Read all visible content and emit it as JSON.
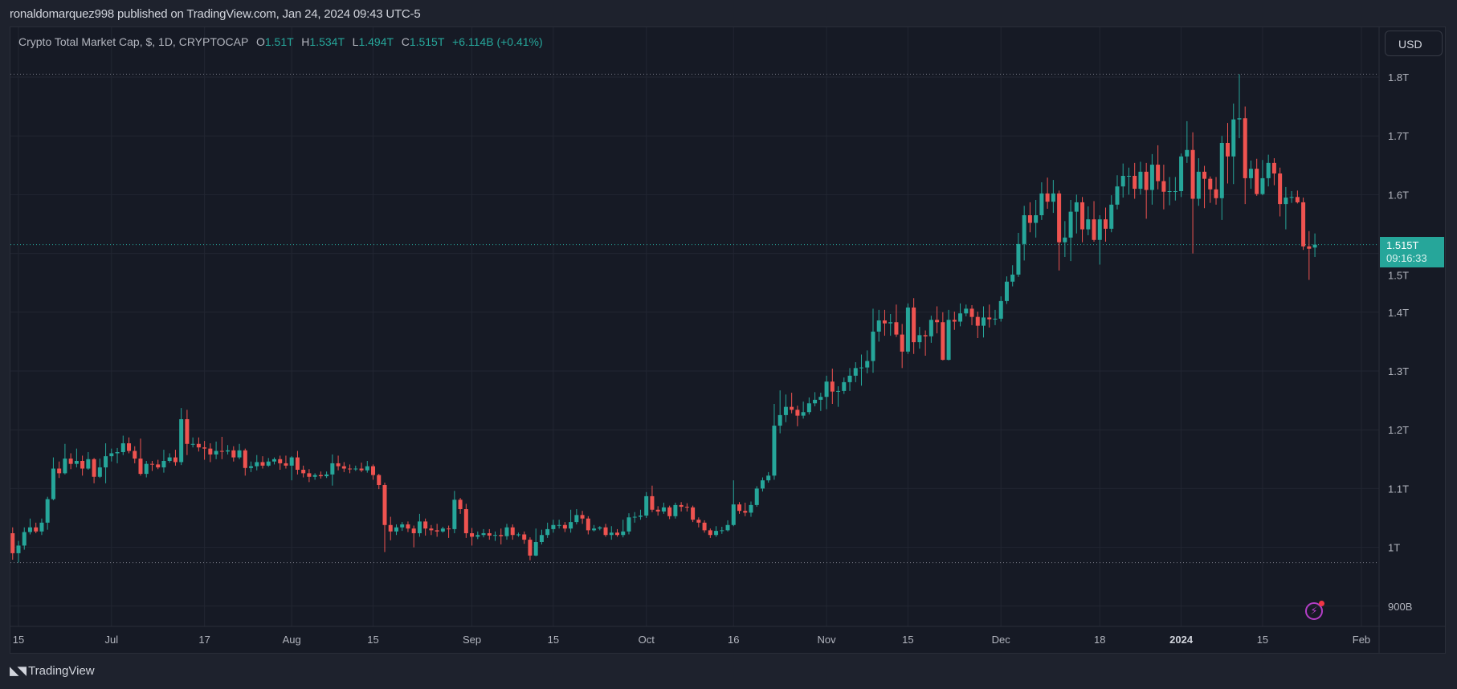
{
  "header": {
    "publish_line": "ronaldomarquez998 published on TradingView.com, Jan 24, 2024 09:43 UTC-5"
  },
  "legend": {
    "symbol": "Crypto Total Market Cap, $, 1D, CRYPTOCAP",
    "o_label": "O",
    "o_value": "1.51T",
    "h_label": "H",
    "h_value": "1.534T",
    "l_label": "L",
    "l_value": "1.494T",
    "c_label": "C",
    "c_value": "1.515T",
    "change": "+6.114B (+0.41%)"
  },
  "price_axis": {
    "currency_button": "USD",
    "last_price": "1.515T",
    "countdown": "09:16:33"
  },
  "footer": {
    "brand": "TradingView",
    "logo_mark": "TV"
  },
  "colors": {
    "up": "#26a69a",
    "down": "#ef5350",
    "background": "#161a25",
    "grid": "#222632"
  },
  "chart_data": {
    "type": "candlestick",
    "title": "Crypto Total Market Cap, $, 1D, CRYPTOCAP",
    "start_date": "2023-06-14",
    "interval": "1D",
    "units": "T (trillion USD)",
    "ylim": [
      0.86,
      1.84
    ],
    "y_ticks": [
      {
        "v": 1.8,
        "label": "1.8T"
      },
      {
        "v": 1.7,
        "label": "1.7T"
      },
      {
        "v": 1.6,
        "label": "1.6T"
      },
      {
        "v": 1.5,
        "label": "1.5T"
      },
      {
        "v": 1.4,
        "label": "1.4T"
      },
      {
        "v": 1.3,
        "label": "1.3T"
      },
      {
        "v": 1.2,
        "label": "1.2T"
      },
      {
        "v": 1.1,
        "label": "1.1T"
      },
      {
        "v": 1.0,
        "label": "1T"
      },
      {
        "v": 0.9,
        "label": "900B"
      }
    ],
    "x_ticks": [
      {
        "date": "2023-06-15",
        "label": "15"
      },
      {
        "date": "2023-07-01",
        "label": "Jul"
      },
      {
        "date": "2023-07-17",
        "label": "17"
      },
      {
        "date": "2023-08-01",
        "label": "Aug"
      },
      {
        "date": "2023-08-15",
        "label": "15"
      },
      {
        "date": "2023-09-01",
        "label": "Sep"
      },
      {
        "date": "2023-09-15",
        "label": "15"
      },
      {
        "date": "2023-10-01",
        "label": "Oct"
      },
      {
        "date": "2023-10-16",
        "label": "16"
      },
      {
        "date": "2023-11-01",
        "label": "Nov"
      },
      {
        "date": "2023-11-15",
        "label": "15"
      },
      {
        "date": "2023-12-01",
        "label": "Dec"
      },
      {
        "date": "2023-12-18",
        "label": "18"
      },
      {
        "date": "2024-01-01",
        "label": "2024",
        "bold": true
      },
      {
        "date": "2024-01-15",
        "label": "15"
      },
      {
        "date": "2024-02-01",
        "label": "Feb"
      }
    ],
    "last_price": 1.515,
    "ohlc": [
      [
        1.024,
        1.034,
        0.979,
        0.99
      ],
      [
        0.99,
        1.011,
        0.974,
        1.003
      ],
      [
        1.003,
        1.034,
        0.996,
        1.026
      ],
      [
        1.026,
        1.049,
        1.022,
        1.034
      ],
      [
        1.034,
        1.042,
        1.024,
        1.027
      ],
      [
        1.027,
        1.049,
        1.021,
        1.042
      ],
      [
        1.042,
        1.086,
        1.03,
        1.082
      ],
      [
        1.082,
        1.153,
        1.08,
        1.134
      ],
      [
        1.134,
        1.146,
        1.118,
        1.126
      ],
      [
        1.126,
        1.176,
        1.124,
        1.151
      ],
      [
        1.151,
        1.16,
        1.133,
        1.142
      ],
      [
        1.142,
        1.168,
        1.136,
        1.147
      ],
      [
        1.147,
        1.156,
        1.122,
        1.134
      ],
      [
        1.134,
        1.162,
        1.132,
        1.15
      ],
      [
        1.15,
        1.152,
        1.109,
        1.12
      ],
      [
        1.12,
        1.151,
        1.118,
        1.136
      ],
      [
        1.136,
        1.177,
        1.109,
        1.155
      ],
      [
        1.155,
        1.168,
        1.146,
        1.16
      ],
      [
        1.16,
        1.169,
        1.143,
        1.162
      ],
      [
        1.162,
        1.19,
        1.157,
        1.177
      ],
      [
        1.177,
        1.187,
        1.16,
        1.164
      ],
      [
        1.164,
        1.172,
        1.143,
        1.151
      ],
      [
        1.151,
        1.185,
        1.122,
        1.125
      ],
      [
        1.125,
        1.147,
        1.119,
        1.142
      ],
      [
        1.142,
        1.147,
        1.13,
        1.141
      ],
      [
        1.141,
        1.149,
        1.133,
        1.136
      ],
      [
        1.136,
        1.166,
        1.127,
        1.147
      ],
      [
        1.147,
        1.16,
        1.144,
        1.153
      ],
      [
        1.153,
        1.166,
        1.139,
        1.145
      ],
      [
        1.145,
        1.237,
        1.14,
        1.218
      ],
      [
        1.218,
        1.234,
        1.157,
        1.176
      ],
      [
        1.176,
        1.187,
        1.17,
        1.176
      ],
      [
        1.176,
        1.187,
        1.163,
        1.17
      ],
      [
        1.17,
        1.181,
        1.149,
        1.168
      ],
      [
        1.168,
        1.177,
        1.145,
        1.158
      ],
      [
        1.158,
        1.18,
        1.15,
        1.164
      ],
      [
        1.164,
        1.188,
        1.15,
        1.163
      ],
      [
        1.163,
        1.174,
        1.158,
        1.165
      ],
      [
        1.165,
        1.172,
        1.146,
        1.153
      ],
      [
        1.153,
        1.176,
        1.15,
        1.165
      ],
      [
        1.165,
        1.168,
        1.122,
        1.135
      ],
      [
        1.135,
        1.146,
        1.128,
        1.138
      ],
      [
        1.138,
        1.157,
        1.131,
        1.145
      ],
      [
        1.145,
        1.155,
        1.134,
        1.139
      ],
      [
        1.139,
        1.152,
        1.137,
        1.146
      ],
      [
        1.146,
        1.153,
        1.141,
        1.15
      ],
      [
        1.15,
        1.156,
        1.132,
        1.143
      ],
      [
        1.143,
        1.156,
        1.134,
        1.139
      ],
      [
        1.139,
        1.155,
        1.114,
        1.153
      ],
      [
        1.153,
        1.164,
        1.124,
        1.132
      ],
      [
        1.132,
        1.139,
        1.119,
        1.126
      ],
      [
        1.126,
        1.133,
        1.111,
        1.12
      ],
      [
        1.12,
        1.126,
        1.115,
        1.123
      ],
      [
        1.123,
        1.129,
        1.117,
        1.121
      ],
      [
        1.121,
        1.129,
        1.118,
        1.124
      ],
      [
        1.124,
        1.158,
        1.105,
        1.143
      ],
      [
        1.143,
        1.156,
        1.131,
        1.138
      ],
      [
        1.138,
        1.145,
        1.128,
        1.134
      ],
      [
        1.134,
        1.141,
        1.126,
        1.133
      ],
      [
        1.133,
        1.139,
        1.13,
        1.134
      ],
      [
        1.134,
        1.144,
        1.128,
        1.131
      ],
      [
        1.131,
        1.147,
        1.127,
        1.138
      ],
      [
        1.138,
        1.141,
        1.115,
        1.123
      ],
      [
        1.123,
        1.125,
        1.099,
        1.106
      ],
      [
        1.106,
        1.11,
        0.992,
        1.038
      ],
      [
        1.038,
        1.052,
        1.012,
        1.027
      ],
      [
        1.027,
        1.039,
        1.021,
        1.034
      ],
      [
        1.034,
        1.043,
        1.028,
        1.039
      ],
      [
        1.039,
        1.044,
        1.026,
        1.032
      ],
      [
        1.032,
        1.037,
        1.0,
        1.024
      ],
      [
        1.024,
        1.057,
        1.018,
        1.044
      ],
      [
        1.044,
        1.049,
        1.02,
        1.032
      ],
      [
        1.032,
        1.038,
        1.021,
        1.029
      ],
      [
        1.029,
        1.04,
        1.018,
        1.027
      ],
      [
        1.027,
        1.035,
        1.025,
        1.032
      ],
      [
        1.032,
        1.037,
        1.016,
        1.031
      ],
      [
        1.031,
        1.096,
        1.024,
        1.081
      ],
      [
        1.081,
        1.084,
        1.057,
        1.065
      ],
      [
        1.065,
        1.074,
        1.016,
        1.024
      ],
      [
        1.024,
        1.033,
        1.003,
        1.018
      ],
      [
        1.018,
        1.027,
        1.014,
        1.021
      ],
      [
        1.021,
        1.031,
        1.017,
        1.024
      ],
      [
        1.024,
        1.031,
        1.013,
        1.02
      ],
      [
        1.02,
        1.027,
        1.011,
        1.021
      ],
      [
        1.021,
        1.032,
        1.005,
        1.019
      ],
      [
        1.019,
        1.04,
        1.013,
        1.034
      ],
      [
        1.034,
        1.039,
        1.013,
        1.021
      ],
      [
        1.021,
        1.025,
        1.018,
        1.022
      ],
      [
        1.022,
        1.027,
        1.006,
        1.013
      ],
      [
        1.013,
        1.017,
        0.978,
        0.986
      ],
      [
        0.986,
        1.032,
        0.985,
        1.009
      ],
      [
        1.009,
        1.03,
        1.005,
        1.021
      ],
      [
        1.021,
        1.042,
        1.016,
        1.031
      ],
      [
        1.031,
        1.047,
        1.025,
        1.038
      ],
      [
        1.038,
        1.047,
        1.032,
        1.038
      ],
      [
        1.038,
        1.043,
        1.026,
        1.032
      ],
      [
        1.032,
        1.064,
        1.025,
        1.043
      ],
      [
        1.043,
        1.065,
        1.039,
        1.055
      ],
      [
        1.055,
        1.062,
        1.04,
        1.049
      ],
      [
        1.049,
        1.053,
        1.022,
        1.029
      ],
      [
        1.029,
        1.038,
        1.027,
        1.032
      ],
      [
        1.032,
        1.036,
        1.029,
        1.034
      ],
      [
        1.034,
        1.04,
        1.018,
        1.021
      ],
      [
        1.021,
        1.036,
        1.013,
        1.025
      ],
      [
        1.025,
        1.031,
        1.018,
        1.021
      ],
      [
        1.021,
        1.047,
        1.017,
        1.027
      ],
      [
        1.027,
        1.058,
        1.022,
        1.051
      ],
      [
        1.051,
        1.06,
        1.042,
        1.052
      ],
      [
        1.052,
        1.064,
        1.047,
        1.054
      ],
      [
        1.054,
        1.094,
        1.05,
        1.087
      ],
      [
        1.087,
        1.105,
        1.06,
        1.064
      ],
      [
        1.064,
        1.07,
        1.054,
        1.061
      ],
      [
        1.061,
        1.076,
        1.057,
        1.068
      ],
      [
        1.068,
        1.071,
        1.048,
        1.053
      ],
      [
        1.053,
        1.076,
        1.049,
        1.072
      ],
      [
        1.072,
        1.077,
        1.061,
        1.069
      ],
      [
        1.069,
        1.075,
        1.061,
        1.068
      ],
      [
        1.068,
        1.071,
        1.043,
        1.047
      ],
      [
        1.047,
        1.051,
        1.034,
        1.042
      ],
      [
        1.042,
        1.046,
        1.025,
        1.029
      ],
      [
        1.029,
        1.032,
        1.016,
        1.021
      ],
      [
        1.021,
        1.036,
        1.018,
        1.028
      ],
      [
        1.028,
        1.035,
        1.023,
        1.029
      ],
      [
        1.029,
        1.046,
        1.027,
        1.038
      ],
      [
        1.038,
        1.114,
        1.036,
        1.073
      ],
      [
        1.073,
        1.077,
        1.057,
        1.062
      ],
      [
        1.062,
        1.076,
        1.053,
        1.059
      ],
      [
        1.059,
        1.078,
        1.052,
        1.072
      ],
      [
        1.072,
        1.104,
        1.069,
        1.1
      ],
      [
        1.1,
        1.119,
        1.095,
        1.114
      ],
      [
        1.114,
        1.128,
        1.11,
        1.122
      ],
      [
        1.122,
        1.244,
        1.115,
        1.207
      ],
      [
        1.207,
        1.267,
        1.194,
        1.225
      ],
      [
        1.225,
        1.26,
        1.213,
        1.239
      ],
      [
        1.239,
        1.263,
        1.228,
        1.234
      ],
      [
        1.234,
        1.241,
        1.206,
        1.224
      ],
      [
        1.224,
        1.248,
        1.219,
        1.23
      ],
      [
        1.23,
        1.255,
        1.226,
        1.245
      ],
      [
        1.245,
        1.264,
        1.24,
        1.251
      ],
      [
        1.251,
        1.263,
        1.232,
        1.256
      ],
      [
        1.256,
        1.292,
        1.235,
        1.282
      ],
      [
        1.282,
        1.304,
        1.244,
        1.265
      ],
      [
        1.265,
        1.274,
        1.239,
        1.266
      ],
      [
        1.266,
        1.289,
        1.261,
        1.281
      ],
      [
        1.281,
        1.305,
        1.266,
        1.292
      ],
      [
        1.292,
        1.315,
        1.281,
        1.305
      ],
      [
        1.305,
        1.328,
        1.275,
        1.306
      ],
      [
        1.306,
        1.335,
        1.296,
        1.317
      ],
      [
        1.317,
        1.406,
        1.297,
        1.367
      ],
      [
        1.367,
        1.404,
        1.35,
        1.386
      ],
      [
        1.386,
        1.404,
        1.36,
        1.381
      ],
      [
        1.381,
        1.397,
        1.36,
        1.383
      ],
      [
        1.383,
        1.413,
        1.358,
        1.362
      ],
      [
        1.362,
        1.38,
        1.305,
        1.333
      ],
      [
        1.333,
        1.415,
        1.329,
        1.408
      ],
      [
        1.408,
        1.424,
        1.329,
        1.349
      ],
      [
        1.349,
        1.375,
        1.338,
        1.361
      ],
      [
        1.361,
        1.369,
        1.326,
        1.359
      ],
      [
        1.359,
        1.394,
        1.348,
        1.387
      ],
      [
        1.387,
        1.41,
        1.364,
        1.383
      ],
      [
        1.383,
        1.4,
        1.318,
        1.319
      ],
      [
        1.319,
        1.404,
        1.318,
        1.387
      ],
      [
        1.387,
        1.401,
        1.37,
        1.384
      ],
      [
        1.384,
        1.415,
        1.376,
        1.398
      ],
      [
        1.398,
        1.413,
        1.393,
        1.406
      ],
      [
        1.406,
        1.412,
        1.378,
        1.392
      ],
      [
        1.392,
        1.401,
        1.356,
        1.377
      ],
      [
        1.377,
        1.41,
        1.357,
        1.391
      ],
      [
        1.391,
        1.413,
        1.374,
        1.388
      ],
      [
        1.388,
        1.404,
        1.378,
        1.389
      ],
      [
        1.389,
        1.427,
        1.384,
        1.419
      ],
      [
        1.419,
        1.461,
        1.414,
        1.452
      ],
      [
        1.452,
        1.48,
        1.444,
        1.464
      ],
      [
        1.464,
        1.535,
        1.46,
        1.516
      ],
      [
        1.516,
        1.581,
        1.488,
        1.565
      ],
      [
        1.565,
        1.587,
        1.536,
        1.552
      ],
      [
        1.552,
        1.591,
        1.527,
        1.565
      ],
      [
        1.565,
        1.621,
        1.557,
        1.602
      ],
      [
        1.602,
        1.629,
        1.576,
        1.588
      ],
      [
        1.588,
        1.625,
        1.569,
        1.602
      ],
      [
        1.602,
        1.607,
        1.471,
        1.519
      ],
      [
        1.519,
        1.555,
        1.494,
        1.527
      ],
      [
        1.527,
        1.591,
        1.487,
        1.571
      ],
      [
        1.571,
        1.6,
        1.534,
        1.587
      ],
      [
        1.587,
        1.596,
        1.519,
        1.541
      ],
      [
        1.541,
        1.58,
        1.531,
        1.558
      ],
      [
        1.558,
        1.589,
        1.52,
        1.523
      ],
      [
        1.523,
        1.565,
        1.481,
        1.558
      ],
      [
        1.558,
        1.578,
        1.52,
        1.542
      ],
      [
        1.542,
        1.599,
        1.536,
        1.583
      ],
      [
        1.583,
        1.633,
        1.575,
        1.614
      ],
      [
        1.614,
        1.653,
        1.595,
        1.632
      ],
      [
        1.632,
        1.646,
        1.6,
        1.632
      ],
      [
        1.632,
        1.654,
        1.593,
        1.61
      ],
      [
        1.61,
        1.656,
        1.6,
        1.639
      ],
      [
        1.639,
        1.654,
        1.559,
        1.608
      ],
      [
        1.608,
        1.669,
        1.583,
        1.651
      ],
      [
        1.651,
        1.684,
        1.609,
        1.623
      ],
      [
        1.623,
        1.651,
        1.575,
        1.605
      ],
      [
        1.605,
        1.63,
        1.582,
        1.606
      ],
      [
        1.606,
        1.63,
        1.59,
        1.606
      ],
      [
        1.606,
        1.67,
        1.596,
        1.665
      ],
      [
        1.665,
        1.725,
        1.654,
        1.676
      ],
      [
        1.676,
        1.706,
        1.5,
        1.593
      ],
      [
        1.593,
        1.662,
        1.581,
        1.639
      ],
      [
        1.639,
        1.649,
        1.577,
        1.627
      ],
      [
        1.627,
        1.631,
        1.586,
        1.609
      ],
      [
        1.609,
        1.63,
        1.583,
        1.594
      ],
      [
        1.594,
        1.7,
        1.557,
        1.688
      ],
      [
        1.688,
        1.722,
        1.619,
        1.665
      ],
      [
        1.665,
        1.755,
        1.618,
        1.728
      ],
      [
        1.728,
        1.805,
        1.696,
        1.73
      ],
      [
        1.73,
        1.75,
        1.584,
        1.628
      ],
      [
        1.628,
        1.658,
        1.61,
        1.644
      ],
      [
        1.644,
        1.661,
        1.598,
        1.601
      ],
      [
        1.601,
        1.659,
        1.599,
        1.628
      ],
      [
        1.628,
        1.668,
        1.614,
        1.654
      ],
      [
        1.654,
        1.662,
        1.616,
        1.636
      ],
      [
        1.636,
        1.646,
        1.563,
        1.584
      ],
      [
        1.584,
        1.613,
        1.541,
        1.595
      ],
      [
        1.595,
        1.606,
        1.586,
        1.596
      ],
      [
        1.596,
        1.607,
        1.585,
        1.587
      ],
      [
        1.587,
        1.595,
        1.506,
        1.512
      ],
      [
        1.512,
        1.538,
        1.455,
        1.508
      ],
      [
        1.51,
        1.534,
        1.494,
        1.515
      ]
    ]
  }
}
